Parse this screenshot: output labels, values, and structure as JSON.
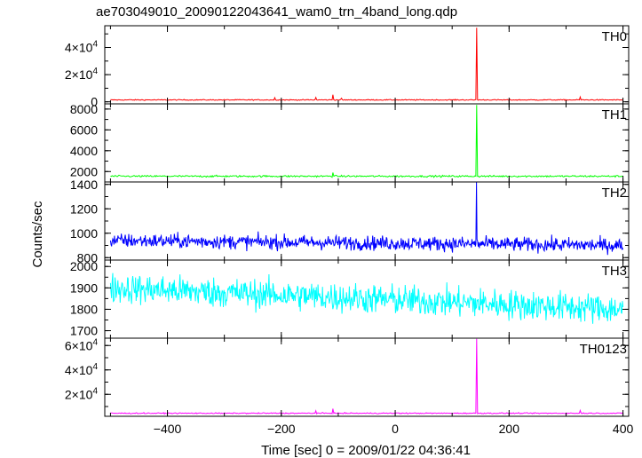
{
  "chart_data": {
    "type": "line",
    "title": "ae703049010_20090122043641_wam0_trn_4band_long.qdp",
    "xlabel": "Time [sec] 0 = 2009/01/22 04:36:41",
    "ylabel": "Counts/sec",
    "xlim": [
      -510,
      410
    ],
    "x_ticks": [
      -400,
      -200,
      0,
      200,
      400
    ],
    "x_tick_labels": [
      "−400",
      "−200",
      "0",
      "200",
      "400"
    ],
    "grid": false,
    "panels": [
      {
        "label": "TH0",
        "color": "#ff0000",
        "ylim": [
          -1500,
          56000
        ],
        "ticks": [
          0,
          20000,
          40000
        ],
        "tick_labels": [
          {
            "mantissa": "0",
            "exp": ""
          },
          {
            "mantissa": "2×10",
            "exp": "4"
          },
          {
            "mantissa": "4×10",
            "exp": "4"
          }
        ],
        "series": {
          "x_start": -500,
          "x_end": 400,
          "points": 600,
          "baseline": 1400,
          "noise": 250,
          "trend": 0,
          "spikes": [
            {
              "x": -212,
              "y": 3000
            },
            {
              "x": -140,
              "y": 3200
            },
            {
              "x": -110,
              "y": 5200
            },
            {
              "x": -95,
              "y": 2600
            },
            {
              "x": 143,
              "y": 54500
            },
            {
              "x": 325,
              "y": 3500
            }
          ]
        }
      },
      {
        "label": "TH1",
        "color": "#00ff00",
        "ylim": [
          1000,
          8500
        ],
        "ticks": [
          2000,
          4000,
          6000,
          8000
        ],
        "tick_labels": [
          {
            "mantissa": "2000",
            "exp": ""
          },
          {
            "mantissa": "4000",
            "exp": ""
          },
          {
            "mantissa": "6000",
            "exp": ""
          },
          {
            "mantissa": "8000",
            "exp": ""
          }
        ],
        "series": {
          "x_start": -500,
          "x_end": 400,
          "points": 600,
          "baseline": 1550,
          "noise": 60,
          "trend": 0,
          "spikes": [
            {
              "x": -110,
              "y": 1900
            },
            {
              "x": 143,
              "y": 8400
            }
          ]
        }
      },
      {
        "label": "TH2",
        "color": "#0000ff",
        "ylim": [
          780,
          1420
        ],
        "ticks": [
          800,
          1000,
          1200,
          1400
        ],
        "tick_labels": [
          {
            "mantissa": "800",
            "exp": ""
          },
          {
            "mantissa": "1000",
            "exp": ""
          },
          {
            "mantissa": "1200",
            "exp": ""
          },
          {
            "mantissa": "1400",
            "exp": ""
          }
        ],
        "series": {
          "x_start": -500,
          "x_end": 400,
          "points": 900,
          "baseline": 940,
          "noise": 42,
          "trend": -40,
          "spikes": [
            {
              "x": 143,
              "y": 1420
            }
          ]
        }
      },
      {
        "label": "TH3",
        "color": "#00ffff",
        "ylim": [
          1665,
          2030
        ],
        "ticks": [
          1700,
          1800,
          1900,
          2000
        ],
        "tick_labels": [
          {
            "mantissa": "1700",
            "exp": ""
          },
          {
            "mantissa": "1800",
            "exp": ""
          },
          {
            "mantissa": "1900",
            "exp": ""
          },
          {
            "mantissa": "2000",
            "exp": ""
          }
        ],
        "series": {
          "x_start": -500,
          "x_end": 400,
          "points": 900,
          "baseline": 1900,
          "noise": 50,
          "trend": -100,
          "spikes": []
        }
      },
      {
        "label": "TH0123",
        "color": "#ff00ff",
        "ylim": [
          2000,
          66000
        ],
        "ticks": [
          20000,
          40000,
          60000
        ],
        "tick_labels": [
          {
            "mantissa": "2×10",
            "exp": "4"
          },
          {
            "mantissa": "4×10",
            "exp": "4"
          },
          {
            "mantissa": "6×10",
            "exp": "4"
          }
        ],
        "series": {
          "x_start": -500,
          "x_end": 400,
          "points": 600,
          "baseline": 4500,
          "noise": 300,
          "trend": 0,
          "spikes": [
            {
              "x": -140,
              "y": 6500
            },
            {
              "x": -110,
              "y": 8200
            },
            {
              "x": 143,
              "y": 65500
            },
            {
              "x": 325,
              "y": 6800
            }
          ]
        }
      }
    ]
  }
}
